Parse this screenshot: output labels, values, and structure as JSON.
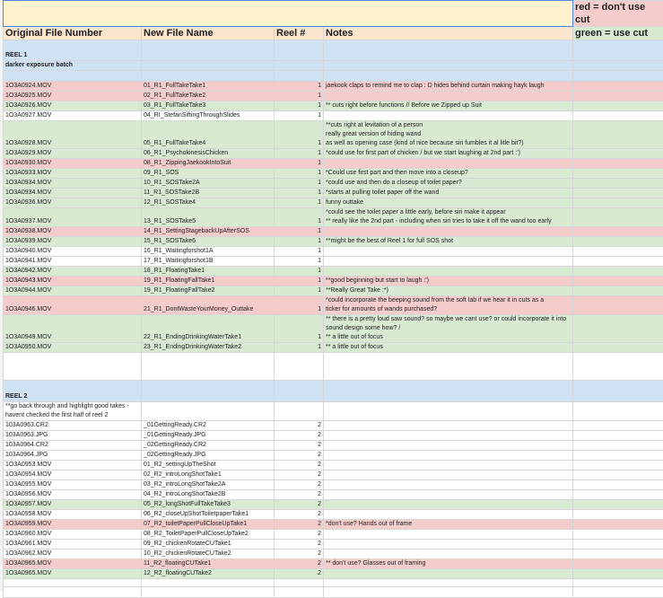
{
  "legend": {
    "red": "red = don't use cut",
    "green": "green = use cut",
    "colors": {
      "red": "#f4cccc",
      "green": "#d9ead3",
      "blue": "#cfe2f3",
      "yellow": "#fff2cc",
      "orange": "#fce5cd"
    }
  },
  "headers": [
    "Original File Number",
    "New File Name",
    "Reel #",
    "Notes"
  ],
  "reel1": {
    "title": "REEL 1",
    "subtitle": "darker exposure batch",
    "rows": [
      {
        "orig": "1O3A0924.MOV",
        "name": "01_R1_FullTakeTake1",
        "reel": "1",
        "notes": "jaekook claps to remind me to clap : D  hides behind curtain making hayk laugh",
        "color": "red"
      },
      {
        "orig": "1O3A0925.MOV",
        "name": "02_R1_FullTakeTake2",
        "reel": "1",
        "notes": "",
        "color": "red"
      },
      {
        "orig": "1O3A0926.MOV",
        "name": "03_R1_FullTakeTake3",
        "reel": "1",
        "notes": "** cuts right before functions // Before we Zipped up Suit",
        "color": "green"
      },
      {
        "orig": "1O3A0927.MOV",
        "name": "04_RI_StefanSiftingThroughSlides",
        "reel": "1",
        "notes": "",
        "color": "white"
      },
      {
        "orig": "1O3A0928.MOV",
        "name": "05_R1_FullTakeTake4",
        "reel": "1",
        "notes": "**cuts right at levitation of a person\nreally great version of hiding wand\nas well as opening case (kind of nice because siri fumbles it al litle bit?)",
        "color": "green"
      },
      {
        "orig": "1O3A0929.MOV",
        "name": "06_R1_PsychokinesisChicken",
        "reel": "1",
        "notes": "*could use for first part of chicken / but we start laughing at 2nd part :')",
        "color": "green"
      },
      {
        "orig": "1O3A0930.MOV",
        "name": "08_R1_ZippingJaekookIntoSuit",
        "reel": "1",
        "notes": "",
        "color": "red"
      },
      {
        "orig": "1O3A0933.MOV",
        "name": "09_R1_SOS",
        "reel": "1",
        "notes": "*Could use first part  and then move into a closeup?",
        "color": "green"
      },
      {
        "orig": "1O3A0934.MOV",
        "name": "10_R1_SOSTake2A",
        "reel": "1",
        "notes": "*could use and then do a closeup of toilet paper?",
        "color": "green"
      },
      {
        "orig": "1O3A0934.MOV",
        "name": "11_R1_SOSTake2B",
        "reel": "1",
        "notes": "*starts at pulling toilet paper off the wand",
        "color": "green"
      },
      {
        "orig": "1O3A0936.MOV",
        "name": "12_R1_SOSTake4",
        "reel": "1",
        "notes": "funny outtake",
        "color": "green"
      },
      {
        "orig": "1O3A0937.MOV",
        "name": "13_R1_SOSTake5",
        "reel": "1",
        "notes": "*could see the toilet paper a little early, before siri make it appear\n** really like the 2nd part - including when siri tries to take it off the wand too early",
        "color": "green"
      },
      {
        "orig": "1O3A0938.MOV",
        "name": "14_R1_SettingStagebackUpAfterSOS",
        "reel": "1",
        "notes": "",
        "color": "red"
      },
      {
        "orig": "1O3A0939.MOV",
        "name": "15_R1_SOSTake6",
        "reel": "1",
        "notes": "**might be the best of Reel 1 for full SOS shot",
        "color": "green"
      },
      {
        "orig": "1O3A0940.MOV",
        "name": "16_R1_Waitingforshot1A",
        "reel": "1",
        "notes": "",
        "color": "white"
      },
      {
        "orig": "1O3A0941.MOV",
        "name": "17_R1_Waitingforshot1B",
        "reel": "1",
        "notes": "",
        "color": "white"
      },
      {
        "orig": "1O3A0942.MOV",
        "name": "18_R1_FloatingTake1",
        "reel": "1",
        "notes": "",
        "color": "green"
      },
      {
        "orig": "1O3A0943.MOV",
        "name": "19_R1_FloatingFallTake1",
        "reel": "1",
        "notes": "**good beginning but start to laugh :')",
        "color": "red"
      },
      {
        "orig": "1O3A0944.MOV",
        "name": "19_R1_FloatingFallTake2",
        "reel": "1",
        "notes": "**Really Great Take  :*)",
        "color": "green"
      },
      {
        "orig": "1O3A0946.MOV",
        "name": "21_R1_DontWasteYourMoney_Outtake",
        "reel": "1",
        "notes": "*could incorporate the beeping sound from the soft lab if we hear it in cuts as a\nticker for amounts of wands purchased?",
        "color": "red"
      },
      {
        "orig": "1O3A0949.MOV",
        "name": "22_R1_EndingDrinkingWaterTake1",
        "reel": "1",
        "notes": "** there is a pretty loud saw sound? so maybe we cant use? or could incorporate it into\nsound design some how? /\n** a little out of focus",
        "color": "green"
      },
      {
        "orig": "1O3A0950.MOV",
        "name": "23_R1_EndingDrinkingWaterTake2",
        "reel": "1",
        "notes": "** a little out of focus",
        "color": "green"
      }
    ]
  },
  "reel2": {
    "title": "REEL 2",
    "note": "**go back through and highlight good takes -\nhavent checked the first half of reel 2",
    "rows": [
      {
        "orig": "103A0963.CR2",
        "name": "_01GettingReady.CR2",
        "reel": "2",
        "notes": "",
        "color": "white"
      },
      {
        "orig": "103A0963.JPG",
        "name": "_01GettingReady.JPG",
        "reel": "2",
        "notes": "",
        "color": "white"
      },
      {
        "orig": "103A0964.CR2",
        "name": "_02GettingReady.CR2",
        "reel": "2",
        "notes": "",
        "color": "white"
      },
      {
        "orig": "103A0964.JPG",
        "name": "_02GettingReady.JPG",
        "reel": "2",
        "notes": "",
        "color": "white"
      },
      {
        "orig": "1O3A0953.MOV",
        "name": "01_R2_settingUpTheShot",
        "reel": "2",
        "notes": "",
        "color": "white"
      },
      {
        "orig": "1O3A0954.MOV",
        "name": "02_R2_introLongShotTake1",
        "reel": "2",
        "notes": "",
        "color": "white"
      },
      {
        "orig": "1O3A0955.MOV",
        "name": "03_R2_introLongShotTake2A",
        "reel": "2",
        "notes": "",
        "color": "white"
      },
      {
        "orig": "1O3A0956.MOV",
        "name": "04_R2_introLongShotTake2B",
        "reel": "2",
        "notes": "",
        "color": "white"
      },
      {
        "orig": "1O3A0957.MOV",
        "name": "05_R2_longShotFullTakeTake3",
        "reel": "2",
        "notes": "",
        "color": "green"
      },
      {
        "orig": "1O3A0958.MOV",
        "name": "06_R2_closeUpShotToiletpaperTake1",
        "reel": "2",
        "notes": "",
        "color": "white"
      },
      {
        "orig": "1O3A0959.MOV",
        "name": "07_R2_toiletPaperPullCloseUpTake1",
        "reel": "2",
        "notes": "*don't use? Hands  out of frame",
        "color": "red"
      },
      {
        "orig": "1O3A0960.MOV",
        "name": "08_R2_ToiletPaperPullCloseUpTake2",
        "reel": "2",
        "notes": "",
        "color": "white"
      },
      {
        "orig": "1O3A0961.MOV",
        "name": "09_R2_chickenRotateCUTake1",
        "reel": "2",
        "notes": "",
        "color": "white"
      },
      {
        "orig": "1O3A0962.MOV",
        "name": "10_R2_chickenRotateCUTake2",
        "reel": "2",
        "notes": "",
        "color": "white"
      },
      {
        "orig": "1O3A0965.MOV",
        "name": "11_R2_floatingCUTake1",
        "reel": "2",
        "notes": "** don't use? Glasses out of framing",
        "color": "red"
      },
      {
        "orig": "1O3A0965.MOV",
        "name": "12_R2_floatingCUTake2",
        "reel": "2",
        "notes": "",
        "color": "green"
      }
    ]
  }
}
